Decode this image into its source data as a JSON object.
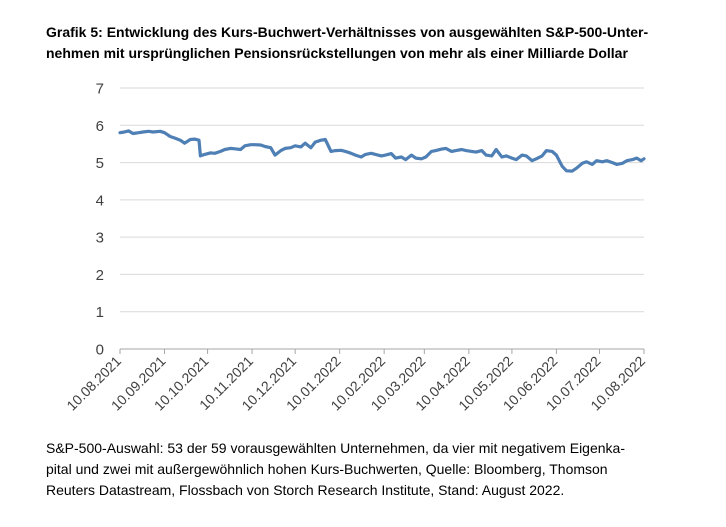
{
  "title_lines": [
    "Grafik 5: Entwicklung des Kurs-Buchwert-Verhältnisses von ausgewählten S&P-500-Unter-",
    "nehmen mit ursprünglichen Pensionsrückstellungen von mehr als einer Milliarde Dollar"
  ],
  "footer_lines": [
    "S&P-500-Auswahl: 53 der 59 vorausgewählten Unternehmen, da vier mit negativem Eigenka-",
    "pital und zwei mit außergewöhnlich hohen Kurs-Buchwerten, Quelle: Bloomberg, Thomson",
    "Reuters Datastream, Flossbach von Storch Research Institute, Stand: August 2022."
  ],
  "chart_data": {
    "type": "line",
    "title": "",
    "xlabel": "",
    "ylabel": "",
    "ylim": [
      0,
      7
    ],
    "yticks": [
      "0",
      "1",
      "2",
      "3",
      "4",
      "5",
      "6",
      "7"
    ],
    "grid": true,
    "line_color": "#4e7fb5",
    "xticks": [
      "10.08.2021",
      "10.09.2021",
      "10.10.2021",
      "10.11.2021",
      "10.12.2021",
      "10.01.2022",
      "10.02.2022",
      "10.03.2022",
      "10.04.2022",
      "10.05.2022",
      "10.06.2022",
      "10.07.2022",
      "10.08.2022"
    ],
    "series": [
      {
        "x": [
          "2021-08-10",
          "2021-08-13",
          "2021-08-16",
          "2021-08-19",
          "2021-08-23",
          "2021-08-26",
          "2021-08-30",
          "2021-09-02",
          "2021-09-07",
          "2021-09-10",
          "2021-09-14",
          "2021-09-17",
          "2021-09-21",
          "2021-09-24",
          "2021-09-28",
          "2021-10-01",
          "2021-10-04",
          "2021-10-05",
          "2021-10-08",
          "2021-10-12",
          "2021-10-15",
          "2021-10-19",
          "2021-10-22",
          "2021-10-26",
          "2021-10-29",
          "2021-11-02",
          "2021-11-05",
          "2021-11-09",
          "2021-11-12",
          "2021-11-16",
          "2021-11-19",
          "2021-11-23",
          "2021-11-26",
          "2021-11-30",
          "2021-12-03",
          "2021-12-07",
          "2021-12-10",
          "2021-12-14",
          "2021-12-17",
          "2021-12-21",
          "2021-12-24",
          "2021-12-28",
          "2021-12-31",
          "2022-01-04",
          "2022-01-07",
          "2022-01-11",
          "2022-01-14",
          "2022-01-18",
          "2022-01-21",
          "2022-01-25",
          "2022-01-28",
          "2022-02-01",
          "2022-02-04",
          "2022-02-08",
          "2022-02-11",
          "2022-02-15",
          "2022-02-18",
          "2022-02-22",
          "2022-02-25",
          "2022-03-01",
          "2022-03-04",
          "2022-03-08",
          "2022-03-11",
          "2022-03-15",
          "2022-03-18",
          "2022-03-22",
          "2022-03-25",
          "2022-03-29",
          "2022-04-01",
          "2022-04-05",
          "2022-04-08",
          "2022-04-12",
          "2022-04-15",
          "2022-04-19",
          "2022-04-22",
          "2022-04-26",
          "2022-04-29",
          "2022-05-03",
          "2022-05-06",
          "2022-05-10",
          "2022-05-13",
          "2022-05-17",
          "2022-05-20",
          "2022-05-24",
          "2022-05-27",
          "2022-05-31",
          "2022-06-03",
          "2022-06-07",
          "2022-06-10",
          "2022-06-14",
          "2022-06-17",
          "2022-06-21",
          "2022-06-24",
          "2022-06-28",
          "2022-07-01",
          "2022-07-05",
          "2022-07-08",
          "2022-07-12",
          "2022-07-15",
          "2022-07-19",
          "2022-07-22",
          "2022-07-26",
          "2022-07-29",
          "2022-08-02",
          "2022-08-05",
          "2022-08-08",
          "2022-08-10"
        ],
        "y": [
          5.8,
          5.82,
          5.85,
          5.78,
          5.8,
          5.82,
          5.84,
          5.82,
          5.84,
          5.8,
          5.7,
          5.66,
          5.6,
          5.52,
          5.62,
          5.63,
          5.6,
          5.18,
          5.22,
          5.26,
          5.25,
          5.3,
          5.35,
          5.38,
          5.37,
          5.35,
          5.45,
          5.48,
          5.48,
          5.47,
          5.43,
          5.4,
          5.2,
          5.32,
          5.38,
          5.4,
          5.45,
          5.42,
          5.52,
          5.4,
          5.55,
          5.6,
          5.62,
          5.3,
          5.32,
          5.33,
          5.3,
          5.25,
          5.2,
          5.15,
          5.22,
          5.25,
          5.22,
          5.18,
          5.2,
          5.24,
          5.12,
          5.15,
          5.08,
          5.2,
          5.12,
          5.1,
          5.15,
          5.3,
          5.32,
          5.36,
          5.38,
          5.3,
          5.32,
          5.35,
          5.32,
          5.3,
          5.28,
          5.32,
          5.2,
          5.18,
          5.35,
          5.15,
          5.18,
          5.12,
          5.08,
          5.2,
          5.18,
          5.05,
          5.1,
          5.18,
          5.32,
          5.3,
          5.2,
          4.9,
          4.78,
          4.77,
          4.85,
          4.98,
          5.02,
          4.95,
          5.05,
          5.02,
          5.05,
          5.0,
          4.95,
          4.98,
          5.05,
          5.08,
          5.12,
          5.05,
          5.1
        ]
      }
    ]
  }
}
